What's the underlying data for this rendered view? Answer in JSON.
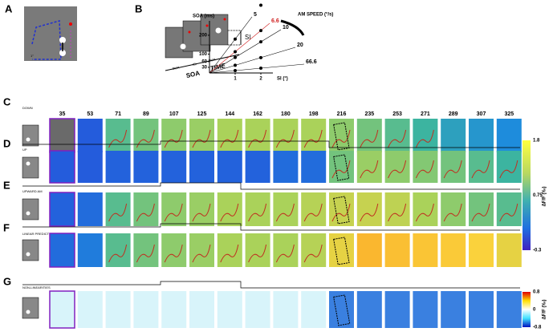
{
  "panels": {
    "a": "A",
    "b": "B"
  },
  "panel_a": {
    "scale": "1°"
  },
  "panel_b": {
    "si": "SI",
    "dur1": "DUR",
    "isi": "ISI",
    "dur2": "DUR",
    "soa": "SOA",
    "time": "TIME",
    "y_label": "SOA (ms)",
    "speed_label": "AM SPEED (°/s)",
    "x_label": "SI (°)",
    "yticks": [
      30,
      60,
      100,
      200
    ],
    "xticks": [
      1,
      2
    ],
    "speeds": [
      5,
      6.6,
      10,
      20,
      66.6
    ]
  },
  "frames": {
    "times": [
      35,
      53,
      71,
      89,
      107,
      125,
      144,
      162,
      180,
      198,
      216,
      235,
      253,
      271,
      289,
      307,
      325
    ]
  },
  "rows": [
    {
      "letter": "C",
      "label": "DOWN"
    },
    {
      "letter": "D",
      "label": "UP"
    },
    {
      "letter": "E",
      "label": "UPWARD AM"
    },
    {
      "letter": "F",
      "label": "LINEAR PREDICTION"
    },
    {
      "letter": "G",
      "label": "NON-LINEARITIES"
    }
  ],
  "colorbar1": {
    "ticks": [
      1.8,
      0.75,
      -0.3
    ],
    "label": "ΔF/F (‰)"
  },
  "colorbar2": {
    "ticks": [
      0.8,
      0,
      -0.8
    ],
    "label": "ΔF/F (‰)"
  }
}
